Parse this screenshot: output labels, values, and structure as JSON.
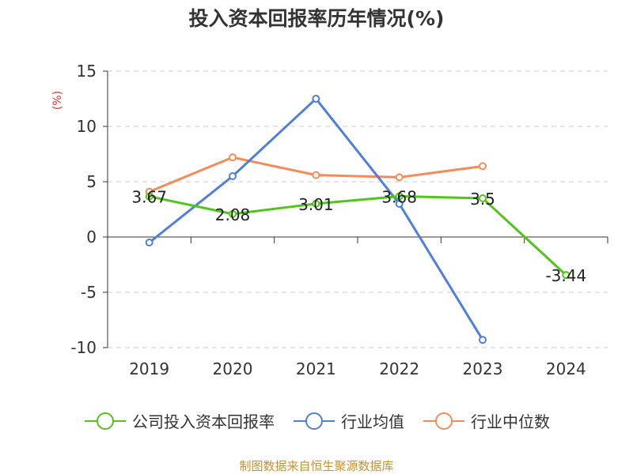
{
  "chart_data": {
    "type": "line",
    "title": "投入资本回报率历年情况(%)",
    "y_unit": "(%)",
    "categories": [
      "2019",
      "2020",
      "2021",
      "2022",
      "2023",
      "2024"
    ],
    "ylim": [
      -10,
      15
    ],
    "yticks": [
      -10,
      -5,
      0,
      5,
      10,
      15
    ],
    "grid": true,
    "legend_position": "bottom",
    "series": [
      {
        "name": "公司投入资本回报率",
        "color": "#52c41a",
        "values": [
          3.67,
          2.08,
          3.01,
          3.68,
          3.5,
          -3.44
        ],
        "labels": [
          "3.67",
          "2.08",
          "3.01",
          "3.68",
          "3.5",
          "-3.44"
        ]
      },
      {
        "name": "行业均值",
        "color": "#4f7fdc",
        "values": [
          -0.5,
          5.5,
          12.5,
          3.0,
          -9.3,
          null
        ]
      },
      {
        "name": "行业中位数",
        "color": "#f58a5a",
        "values": [
          4.1,
          7.2,
          5.6,
          5.4,
          6.4,
          null
        ]
      }
    ]
  },
  "footer": "制图数据来自恒生聚源数据库"
}
